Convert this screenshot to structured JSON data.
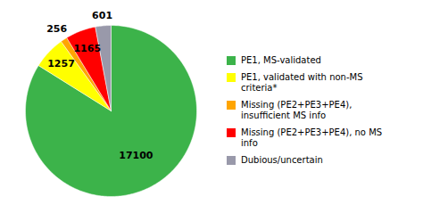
{
  "chart_data": {
    "type": "pie",
    "categories": [
      "PE1, MS-validated",
      "PE1, validated with non-MS\ncriteria*",
      "Missing (PE2+PE3+PE4),\ninsufficient MS info",
      "Missing (PE2+PE3+PE4), no MS\ninfo",
      "Dubious/uncertain"
    ],
    "values": [
      17100,
      1257,
      256,
      1165,
      601
    ],
    "colors": [
      "#3cb34a",
      "#ffff00",
      "#ffa500",
      "#ff0000",
      "#9999aa"
    ],
    "data_labels": true
  }
}
